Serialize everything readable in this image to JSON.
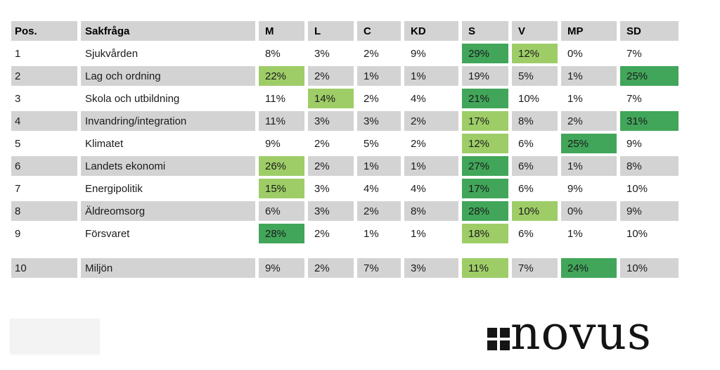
{
  "chart_data": {
    "type": "table",
    "unit": "%",
    "columns": [
      "Pos.",
      "Sakfråga",
      "M",
      "L",
      "C",
      "KD",
      "S",
      "V",
      "MP",
      "SD"
    ],
    "party_keys": [
      "M",
      "L",
      "C",
      "KD",
      "S",
      "V",
      "MP",
      "SD"
    ],
    "rows": [
      {
        "pos": "1",
        "topic": "Sjukvården",
        "values": [
          8,
          3,
          2,
          9,
          29,
          12,
          0,
          7
        ],
        "highlight_dark": "S",
        "highlight_light": "V"
      },
      {
        "pos": "2",
        "topic": "Lag och ordning",
        "values": [
          22,
          2,
          1,
          1,
          19,
          5,
          1,
          25
        ],
        "highlight_dark": "SD",
        "highlight_light": "M"
      },
      {
        "pos": "3",
        "topic": "Skola och utbildning",
        "values": [
          11,
          14,
          2,
          4,
          21,
          10,
          1,
          7
        ],
        "highlight_dark": "S",
        "highlight_light": "L"
      },
      {
        "pos": "4",
        "topic": "Invandring/integration",
        "values": [
          11,
          3,
          3,
          2,
          17,
          8,
          2,
          31
        ],
        "highlight_dark": "SD",
        "highlight_light": "S"
      },
      {
        "pos": "5",
        "topic": "Klimatet",
        "values": [
          9,
          2,
          5,
          2,
          12,
          6,
          25,
          9
        ],
        "highlight_dark": "MP",
        "highlight_light": "S"
      },
      {
        "pos": "6",
        "topic": "Landets ekonomi",
        "values": [
          26,
          2,
          1,
          1,
          27,
          6,
          1,
          8
        ],
        "highlight_dark": "S",
        "highlight_light": "M"
      },
      {
        "pos": "7",
        "topic": "Energipolitik",
        "values": [
          15,
          3,
          4,
          4,
          17,
          6,
          9,
          10
        ],
        "highlight_dark": "S",
        "highlight_light": "M"
      },
      {
        "pos": "8",
        "topic": "Äldreomsorg",
        "values": [
          6,
          3,
          2,
          8,
          28,
          10,
          0,
          9
        ],
        "highlight_dark": "S",
        "highlight_light": "V"
      },
      {
        "pos": "9",
        "topic": "Försvaret",
        "values": [
          28,
          2,
          1,
          1,
          18,
          6,
          1,
          10
        ],
        "highlight_dark": "M",
        "highlight_light": "S"
      },
      {
        "pos": "10",
        "topic": "Miljön",
        "values": [
          9,
          2,
          7,
          3,
          11,
          7,
          24,
          10
        ],
        "highlight_dark": "MP",
        "highlight_light": "S"
      }
    ],
    "layout_hints": {
      "striped_rows": "even positions gray",
      "extra_gap_before_position": "10",
      "grid": "white gaps between all cells"
    }
  },
  "colors": {
    "highlight_max": "#41a65a",
    "highlight_second": "#9ecd67",
    "row_stripe": "#d3d3d3",
    "header_bg": "#d3d3d3",
    "text": "#1b1b1b",
    "logo": "#141414"
  },
  "logo": {
    "name": "Novus",
    "text": "novus",
    "icon": "four-squares-icon"
  }
}
